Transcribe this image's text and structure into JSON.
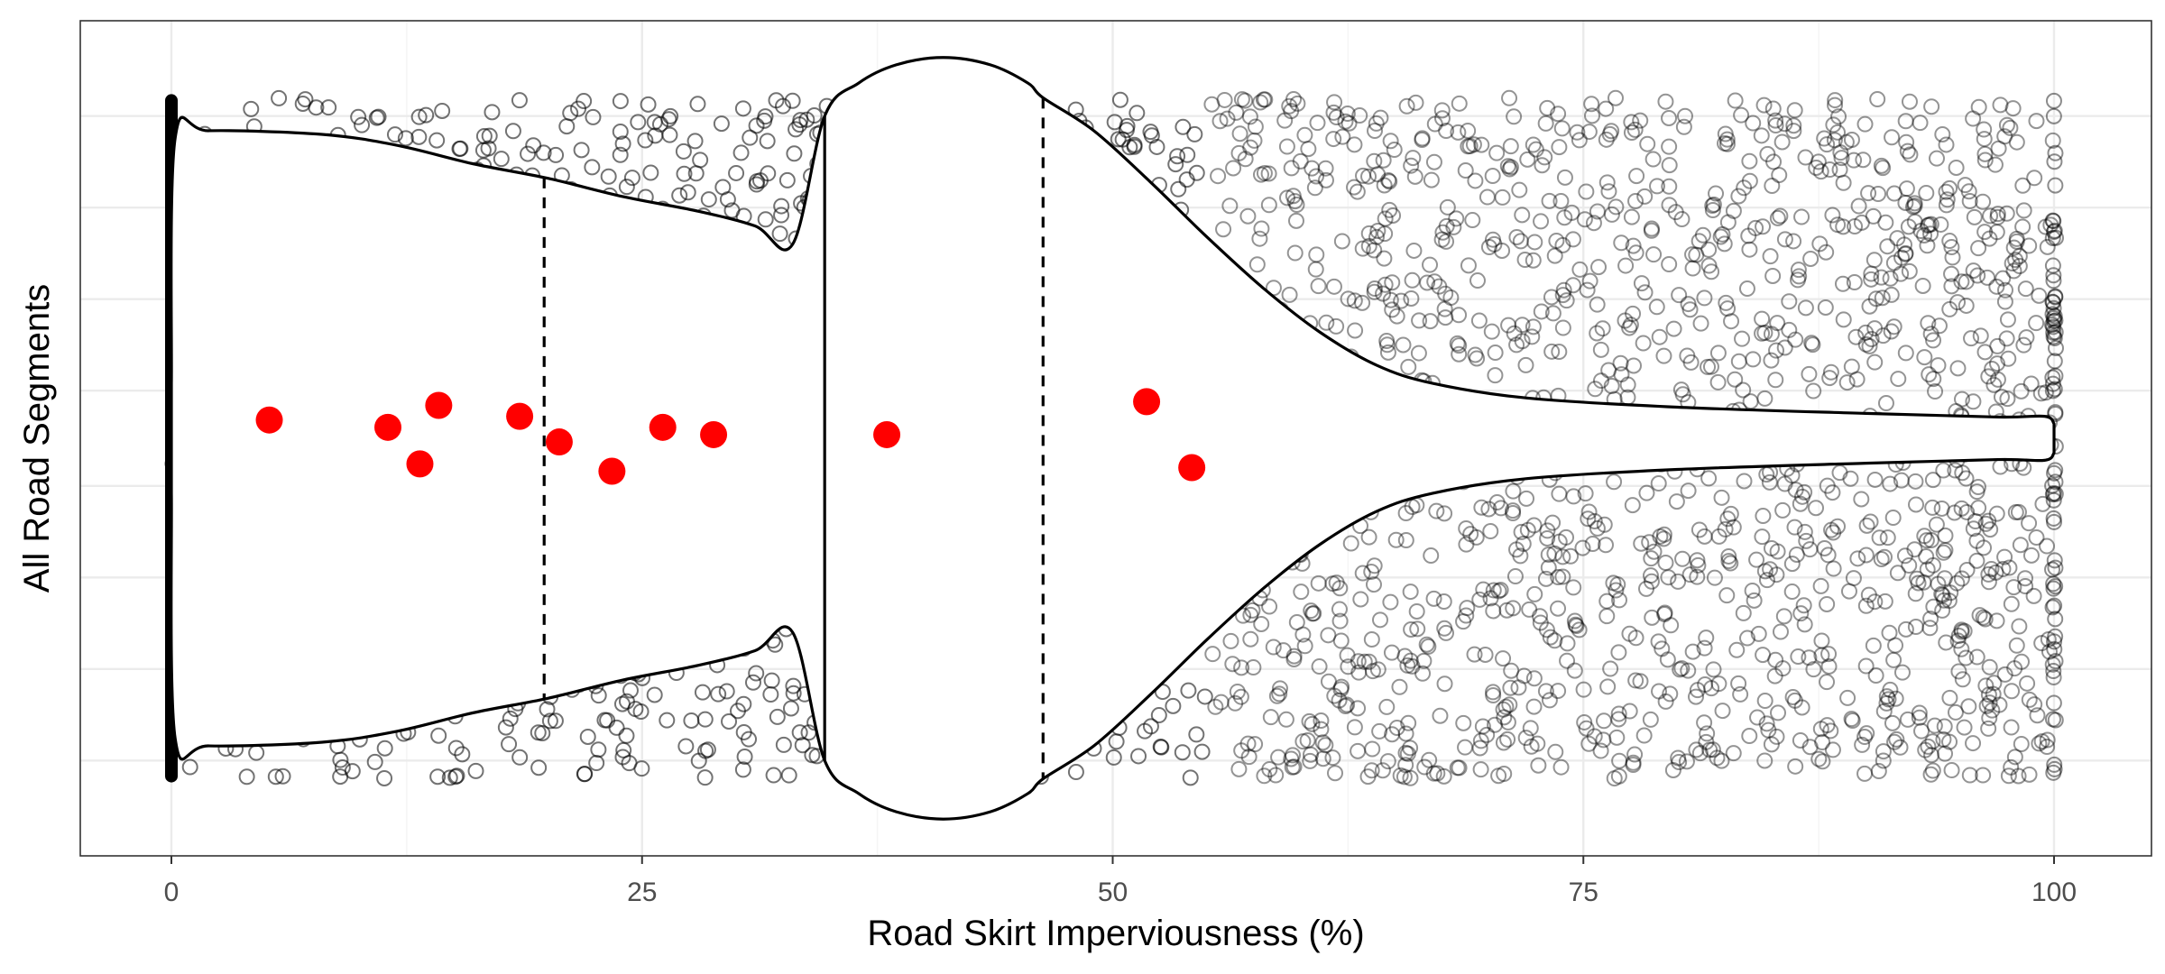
{
  "chart_data": {
    "type": "violin",
    "title": "",
    "xlabel": "Road Skirt Imperviousness (%)",
    "ylabel": "All Road Segments",
    "xlim": [
      -5,
      104
    ],
    "xticks": [
      {
        "value": 0,
        "label": "0"
      },
      {
        "value": 25,
        "label": "25"
      },
      {
        "value": 50,
        "label": "50"
      },
      {
        "value": 75,
        "label": "75"
      },
      {
        "value": 100,
        "label": "100"
      }
    ],
    "grid": true,
    "legend": "none",
    "violin": {
      "quartile_lower": 19.8,
      "median": 34.7,
      "quartile_upper": 46.3,
      "density_profile": [
        {
          "x": 0,
          "half_width": 0.15
        },
        {
          "x": 0.2,
          "half_width": 0.82
        },
        {
          "x": 2,
          "half_width": 0.84
        },
        {
          "x": 8,
          "half_width": 0.83
        },
        {
          "x": 12,
          "half_width": 0.8
        },
        {
          "x": 16,
          "half_width": 0.75
        },
        {
          "x": 20,
          "half_width": 0.71
        },
        {
          "x": 24,
          "half_width": 0.66
        },
        {
          "x": 28,
          "half_width": 0.62
        },
        {
          "x": 31,
          "half_width": 0.58
        },
        {
          "x": 33,
          "half_width": 0.53
        },
        {
          "x": 34.7,
          "half_width": 0.88
        },
        {
          "x": 36.5,
          "half_width": 0.97
        },
        {
          "x": 38.5,
          "half_width": 1.02
        },
        {
          "x": 41,
          "half_width": 1.04
        },
        {
          "x": 43.5,
          "half_width": 1.02
        },
        {
          "x": 45.5,
          "half_width": 0.97
        },
        {
          "x": 46.3,
          "half_width": 0.93
        },
        {
          "x": 49,
          "half_width": 0.84
        },
        {
          "x": 52,
          "half_width": 0.7
        },
        {
          "x": 55,
          "half_width": 0.55
        },
        {
          "x": 58,
          "half_width": 0.41
        },
        {
          "x": 61,
          "half_width": 0.29
        },
        {
          "x": 64,
          "half_width": 0.2
        },
        {
          "x": 67,
          "half_width": 0.15
        },
        {
          "x": 72,
          "half_width": 0.11
        },
        {
          "x": 80,
          "half_width": 0.085
        },
        {
          "x": 90,
          "half_width": 0.068
        },
        {
          "x": 97,
          "half_width": 0.058
        },
        {
          "x": 99.5,
          "half_width": 0.06
        },
        {
          "x": 100,
          "half_width": 0.04
        }
      ]
    },
    "background_points": {
      "description_series": "all road segments (jittered)",
      "count_estimate": 3000,
      "x_range": [
        0,
        100
      ],
      "y_range": [
        -0.93,
        0.93
      ]
    },
    "highlight_points": {
      "color": "#ff0000",
      "points": [
        {
          "x": 5.2,
          "y": 0.05
        },
        {
          "x": 11.5,
          "y": 0.03
        },
        {
          "x": 13.2,
          "y": -0.07
        },
        {
          "x": 14.2,
          "y": 0.09
        },
        {
          "x": 18.5,
          "y": 0.06
        },
        {
          "x": 20.6,
          "y": -0.01
        },
        {
          "x": 23.4,
          "y": -0.09
        },
        {
          "x": 26.1,
          "y": 0.03
        },
        {
          "x": 28.8,
          "y": 0.01
        },
        {
          "x": 38.0,
          "y": 0.01
        },
        {
          "x": 51.8,
          "y": 0.1
        },
        {
          "x": 54.2,
          "y": -0.08
        }
      ]
    },
    "colors": {
      "panel_border": "#333333",
      "grid_major": "#ebebeb",
      "grid_minor": "#f5f5f5",
      "points": "#000000",
      "violin_fill": "#ffffff",
      "highlight": "#ff0000"
    }
  }
}
